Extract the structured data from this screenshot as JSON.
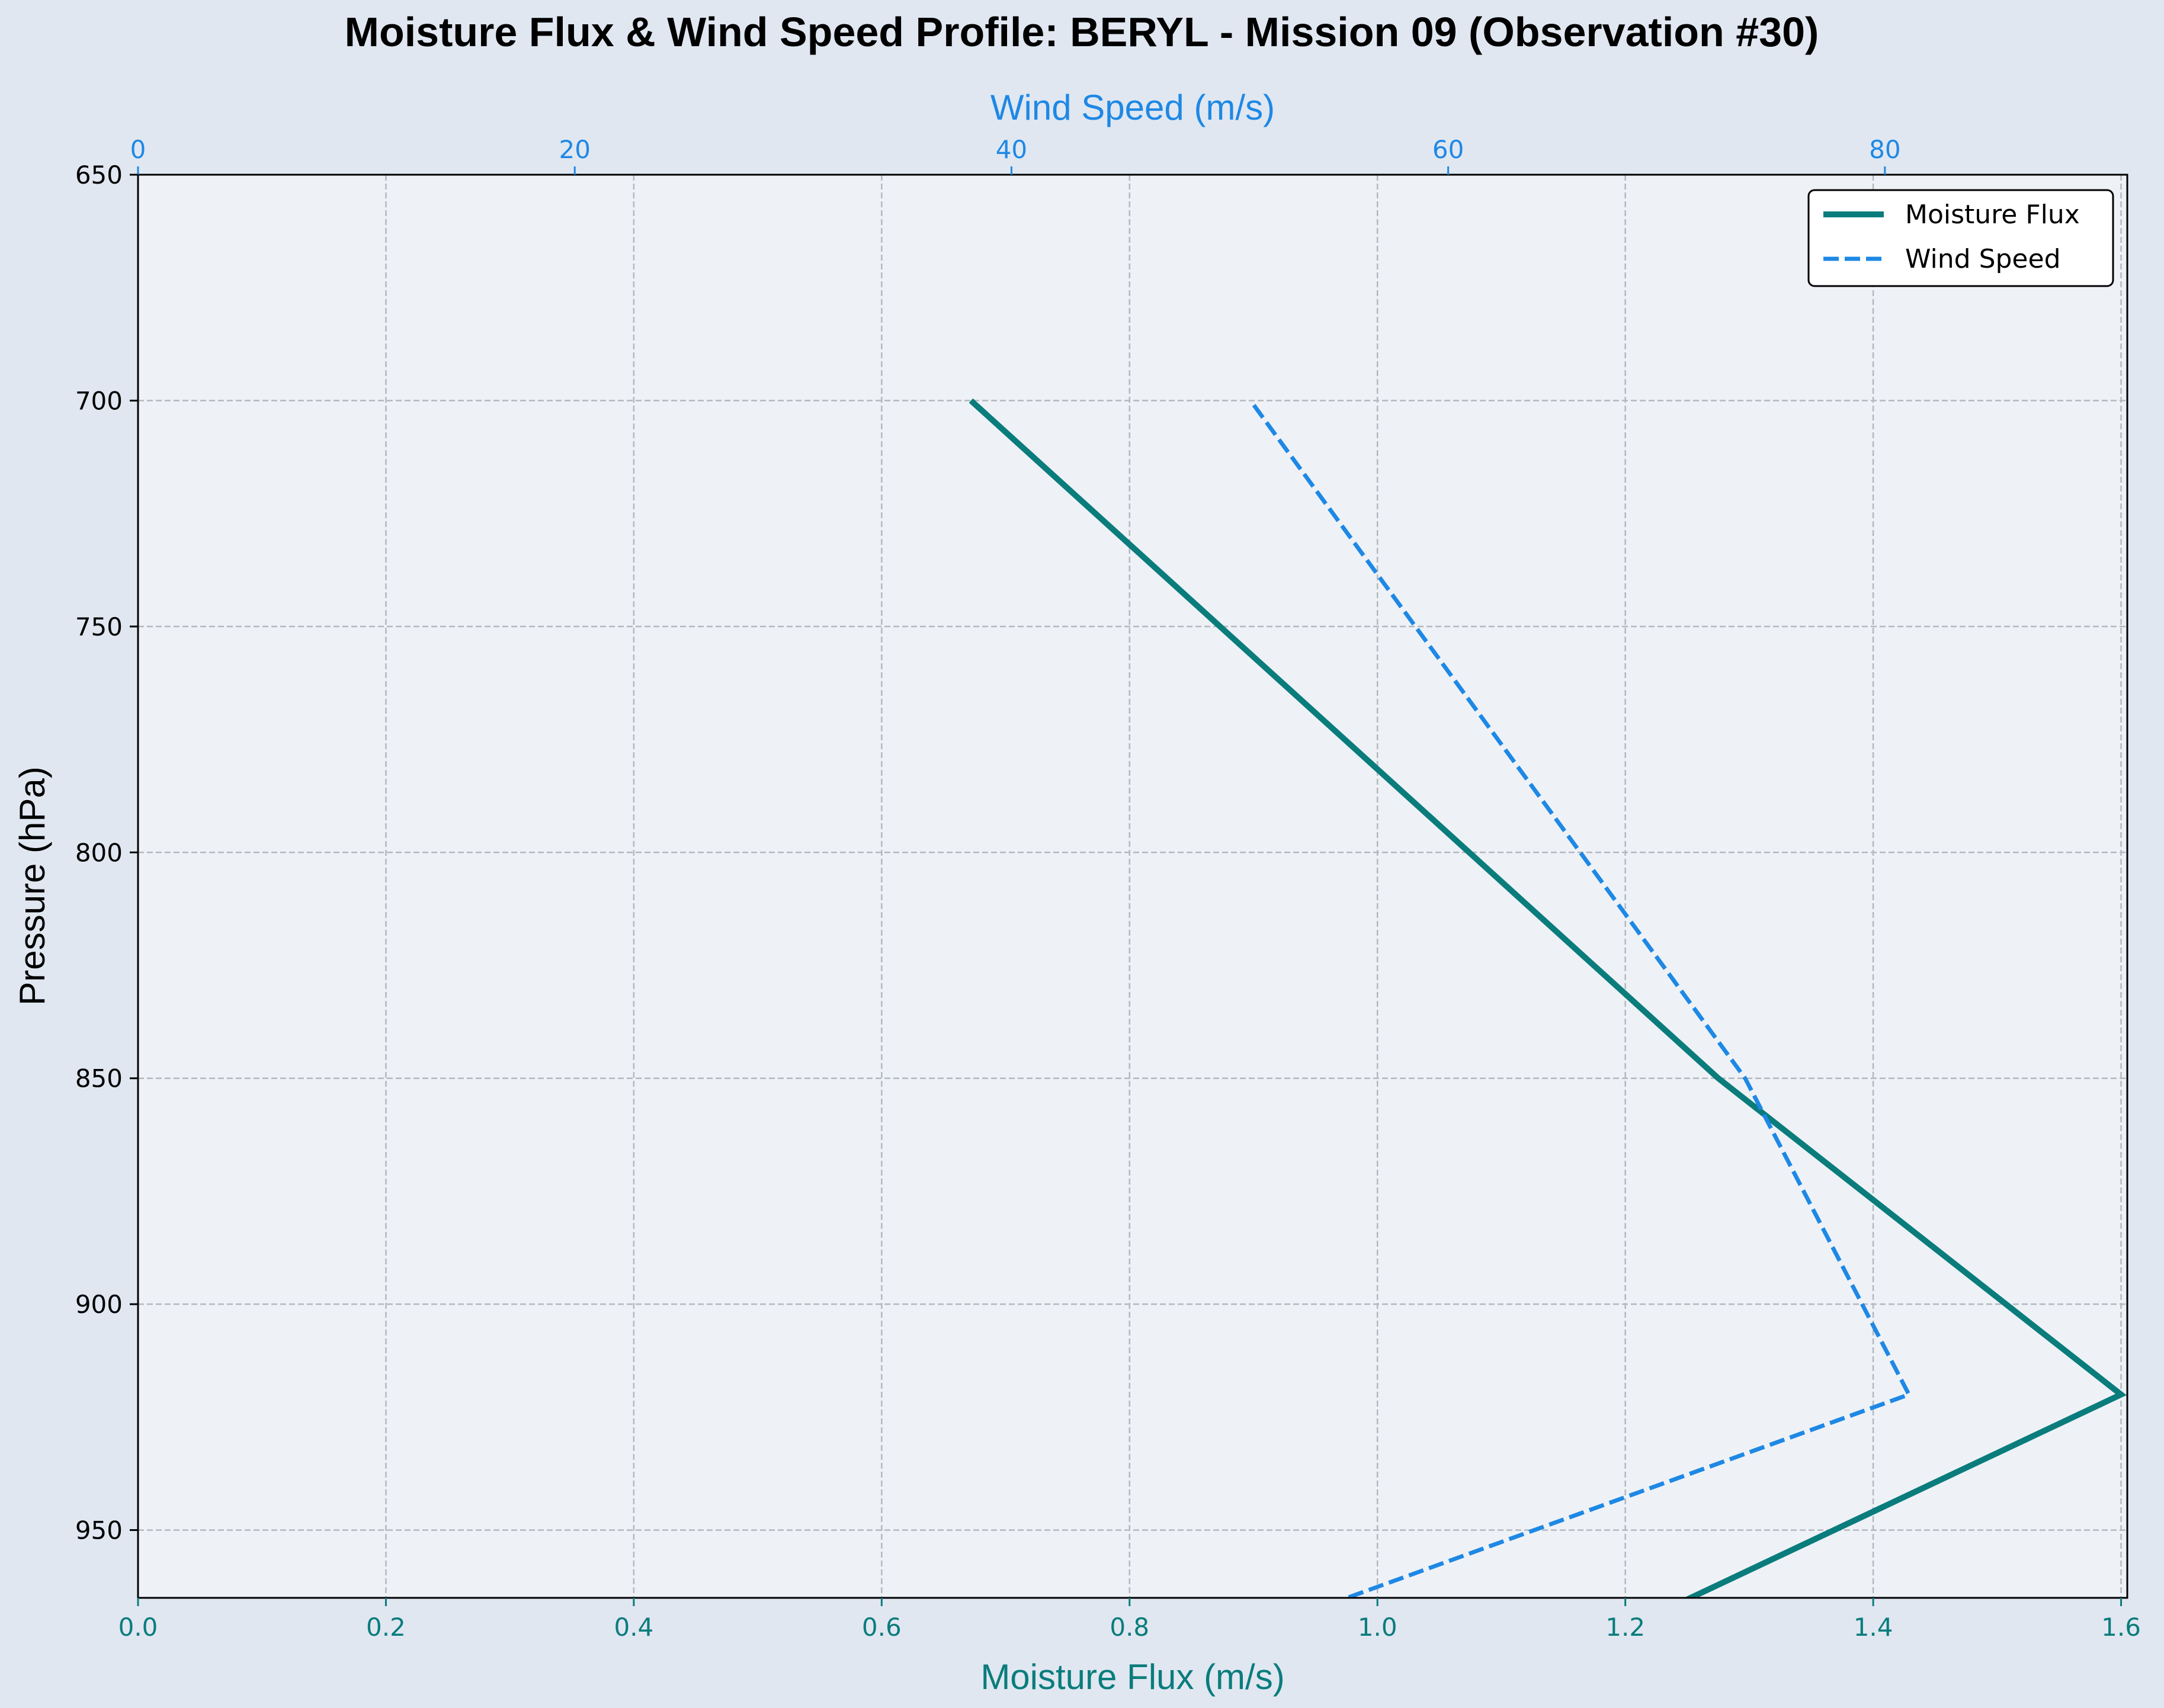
{
  "chart_data": {
    "type": "line",
    "title": "Moisture Flux & Wind Speed Profile: BERYL - Mission 09 (Observation #30)",
    "y_axis": {
      "label": "Pressure (hPa)",
      "range": [
        650,
        965
      ],
      "inverted": true,
      "ticks": [
        650,
        700,
        750,
        800,
        850,
        900,
        950
      ],
      "tick_labels": [
        "650",
        "700",
        "750",
        "800",
        "850",
        "900",
        "950"
      ]
    },
    "x_axis_bottom": {
      "label": "Moisture Flux (m/s)",
      "range": [
        0,
        1.605
      ],
      "ticks": [
        0,
        0.2,
        0.4,
        0.6,
        0.8,
        1.0,
        1.2,
        1.4,
        1.6
      ],
      "tick_labels": [
        "0.0",
        "0.2",
        "0.4",
        "0.6",
        "0.8",
        "1.0",
        "1.2",
        "1.4",
        "1.6"
      ]
    },
    "x_axis_top": {
      "label": "Wind Speed (m/s)",
      "range": [
        0,
        91.1
      ],
      "ticks": [
        0,
        20,
        40,
        60,
        80
      ],
      "tick_labels": [
        "0",
        "20",
        "40",
        "60",
        "80"
      ]
    },
    "grid": true,
    "legend": {
      "position": "top-right",
      "entries": [
        "Moisture Flux",
        "Wind Speed"
      ]
    },
    "series": [
      {
        "name": "Moisture Flux",
        "axis": "bottom",
        "color": "#0a7c7c",
        "style": "solid",
        "points": [
          {
            "x": 0.672,
            "pressure": 700
          },
          {
            "x": 1.275,
            "pressure": 850
          },
          {
            "x": 1.6,
            "pressure": 920
          },
          {
            "x": 1.245,
            "pressure": 966
          }
        ]
      },
      {
        "name": "Wind Speed",
        "axis": "top",
        "color": "#1e88e5",
        "style": "dashed",
        "points": [
          {
            "x": 51.1,
            "pressure": 701
          },
          {
            "x": 73.6,
            "pressure": 850
          },
          {
            "x": 81.1,
            "pressure": 920
          },
          {
            "x": 54.8,
            "pressure": 966
          }
        ]
      }
    ]
  },
  "colors": {
    "background": "#e0e7f1",
    "plot_background": "#eef2f7",
    "moisture": "#0a7c7c",
    "wind": "#1e88e5",
    "grid": "#b4b8bf"
  }
}
